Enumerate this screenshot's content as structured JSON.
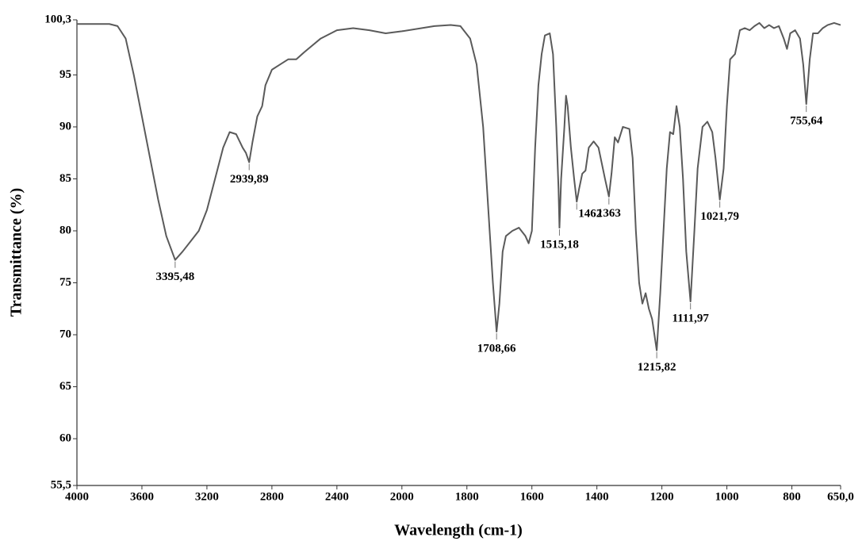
{
  "chart_data": {
    "type": "line",
    "x_label": "Wavelength (cm-1)",
    "y_label": "Transmittance (%)",
    "color": "#5a5a5a",
    "xlim": [
      4000,
      650
    ],
    "xticks": [
      4000,
      3600,
      3200,
      2800,
      2400,
      2000,
      1800,
      1600,
      1400,
      1200,
      1000,
      800,
      {
        "value": 650,
        "label": "650,0"
      }
    ],
    "ylim": [
      55.5,
      100.3
    ],
    "yticks": [
      {
        "value": 100.3,
        "label": "100,3"
      },
      95,
      90,
      85,
      80,
      75,
      70,
      65,
      60,
      {
        "value": 55.5,
        "label": "55,5"
      }
    ],
    "x": [
      4000,
      3800,
      3750,
      3700,
      3650,
      3600,
      3550,
      3500,
      3450,
      3395.48,
      3350,
      3300,
      3250,
      3200,
      3150,
      3100,
      3060,
      3020,
      2980,
      2960,
      2939.89,
      2920,
      2890,
      2860,
      2840,
      2800,
      2750,
      2700,
      2650,
      2600,
      2500,
      2400,
      2300,
      2200,
      2100,
      2000,
      1900,
      1850,
      1820,
      1790,
      1770,
      1750,
      1730,
      1720,
      1708.66,
      1700,
      1690,
      1680,
      1660,
      1640,
      1620,
      1610,
      1600,
      1590,
      1580,
      1570,
      1560,
      1545,
      1535,
      1525,
      1518,
      1515.18,
      1510,
      1500,
      1495,
      1490,
      1480,
      1470,
      1462,
      1455,
      1445,
      1435,
      1425,
      1410,
      1395,
      1385,
      1375,
      1363,
      1355,
      1345,
      1335,
      1320,
      1300,
      1290,
      1280,
      1270,
      1260,
      1250,
      1240,
      1230,
      1215.82,
      1205,
      1195,
      1185,
      1175,
      1165,
      1155,
      1145,
      1135,
      1125,
      1111.97,
      1100,
      1090,
      1075,
      1060,
      1045,
      1035,
      1021.79,
      1010,
      1000,
      990,
      975,
      960,
      945,
      930,
      915,
      900,
      885,
      870,
      855,
      840,
      825,
      815,
      805,
      790,
      775,
      765,
      755.64,
      745,
      735,
      720,
      705,
      690,
      670,
      650
    ],
    "values": [
      99.9,
      99.9,
      99.7,
      98.5,
      95,
      91,
      87,
      83,
      79.5,
      77.2,
      78,
      79,
      80,
      82,
      85,
      88,
      89.5,
      89.3,
      88,
      87.5,
      86.6,
      88.5,
      91,
      92,
      94,
      95.5,
      96,
      96.5,
      96.5,
      97.2,
      98.5,
      99.3,
      99.5,
      99.3,
      99,
      99.2,
      99.7,
      99.8,
      99.7,
      98.5,
      96,
      90,
      80,
      75,
      70.3,
      73,
      78,
      79.5,
      80,
      80.3,
      79.5,
      78.8,
      80,
      88,
      94,
      97,
      98.8,
      99,
      97,
      90,
      84,
      80.3,
      85,
      90,
      93,
      92,
      88,
      85,
      82.8,
      84,
      85.5,
      85.8,
      88,
      88.6,
      88,
      86.5,
      85,
      83.3,
      85.5,
      89,
      88.5,
      90,
      89.8,
      87,
      80,
      75,
      73,
      74,
      72.5,
      71.5,
      68.5,
      74,
      80,
      86,
      89.5,
      89.3,
      92,
      90,
      85,
      78,
      73.2,
      80,
      86,
      90,
      90.5,
      89.5,
      87,
      83,
      86,
      92,
      96.5,
      97,
      99.3,
      99.5,
      99.3,
      99.7,
      100,
      99.5,
      99.8,
      99.5,
      99.7,
      98.5,
      97.5,
      99,
      99.3,
      98.5,
      96,
      92.2,
      96.5,
      99,
      99,
      99.5,
      99.8,
      100,
      99.8
    ],
    "annotations": [
      {
        "label": "3395,48",
        "x": 3395.48
      },
      {
        "label": "2939,89",
        "x": 2939.89
      },
      {
        "label": "1708,66",
        "x": 1708.66
      },
      {
        "label": "1515,18",
        "x": 1515.18
      },
      {
        "label": "1462",
        "x": 1462
      },
      {
        "label": "1363",
        "x": 1363
      },
      {
        "label": "1215,82",
        "x": 1215.82
      },
      {
        "label": "1111,97",
        "x": 1111.97
      },
      {
        "label": "1021,79",
        "x": 1021.79
      },
      {
        "label": "755,64",
        "x": 755.64
      }
    ]
  }
}
